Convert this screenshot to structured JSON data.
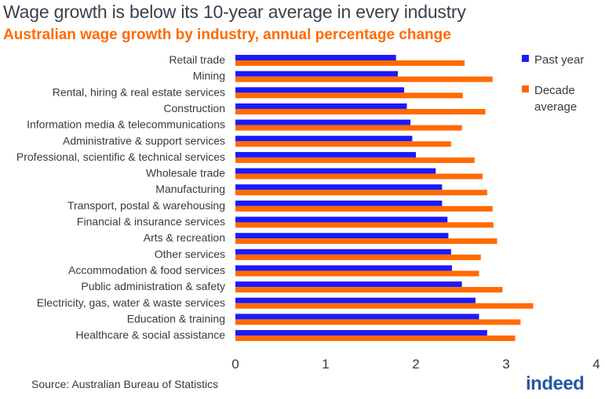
{
  "chart_data": {
    "type": "bar",
    "orientation": "horizontal",
    "title": "Wage growth is below its 10-year average in every industry",
    "subtitle": "Australian wage growth by industry, annual percentage change",
    "categories": [
      "Retail  trade",
      "Mining",
      "Rental, hiring & real estate services",
      "Construction",
      "Information media & telecommunications",
      "Administrative & support services",
      "Professional, scientific & technical services",
      "Wholesale trade",
      "Manufacturing",
      "Transport, postal & warehousing",
      "Financial & insurance services",
      "Arts & recreation",
      "Other services",
      "Accommodation & food services",
      "Public administration & safety",
      "Electricity, gas, water & waste services",
      "Education & training",
      "Healthcare & social assistance"
    ],
    "series": [
      {
        "name": "Past year",
        "color": "#1a1aff",
        "values": [
          1.78,
          1.8,
          1.87,
          1.9,
          1.94,
          1.96,
          2.0,
          2.22,
          2.29,
          2.29,
          2.35,
          2.36,
          2.39,
          2.4,
          2.51,
          2.66,
          2.7,
          2.79
        ]
      },
      {
        "name": "Decade average",
        "color": "#ff6a00",
        "values": [
          2.54,
          2.85,
          2.52,
          2.77,
          2.51,
          2.39,
          2.65,
          2.74,
          2.79,
          2.85,
          2.86,
          2.9,
          2.72,
          2.7,
          2.96,
          3.3,
          3.16,
          3.1
        ]
      }
    ],
    "legend": [
      "Past year",
      "Decade",
      "average"
    ],
    "xlim": [
      0,
      4
    ],
    "xticks": [
      "0",
      "1",
      "2",
      "3",
      "4"
    ],
    "xlabel": "",
    "ylabel": "",
    "grid": false,
    "legend_position": "top-right"
  },
  "source": "Source: Australian Bureau of Statistics",
  "logo_text": "indeed"
}
